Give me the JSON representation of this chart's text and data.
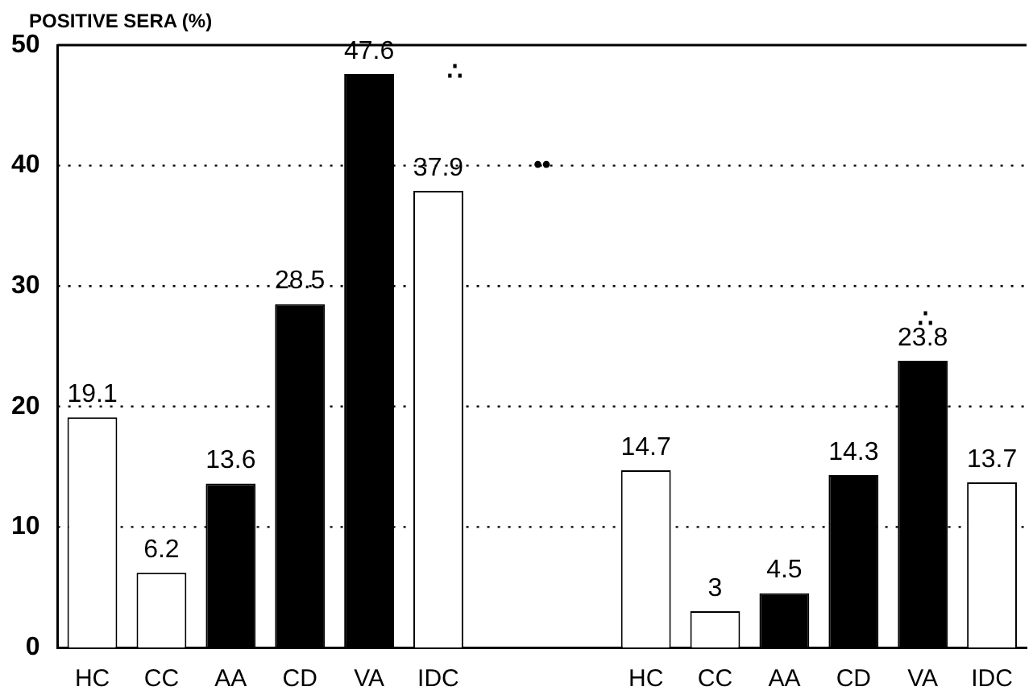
{
  "chart_data": {
    "type": "bar",
    "ylabel": "POSITIVE SERA (%)",
    "categories": [
      "HC",
      "CC",
      "AA",
      "CD",
      "VA",
      "IDC",
      null,
      null,
      "HC",
      "CC",
      "AA",
      "CD",
      "VA",
      "IDC"
    ],
    "values": [
      19.1,
      6.2,
      13.6,
      28.5,
      47.6,
      37.9,
      null,
      null,
      14.7,
      3,
      4.5,
      14.3,
      23.8,
      13.7
    ],
    "colors": [
      "#ffffff",
      "#ffffff",
      "#000000",
      "#000000",
      "#000000",
      "#ffffff",
      null,
      null,
      "#ffffff",
      "#ffffff",
      "#000000",
      "#000000",
      "#000000",
      "#ffffff"
    ],
    "ylim": [
      0,
      50
    ],
    "yticks": [
      0,
      10,
      20,
      30,
      40,
      50
    ],
    "grid": "y",
    "data_labels": true,
    "annotations": [
      "∴",
      "••",
      "∴"
    ]
  }
}
